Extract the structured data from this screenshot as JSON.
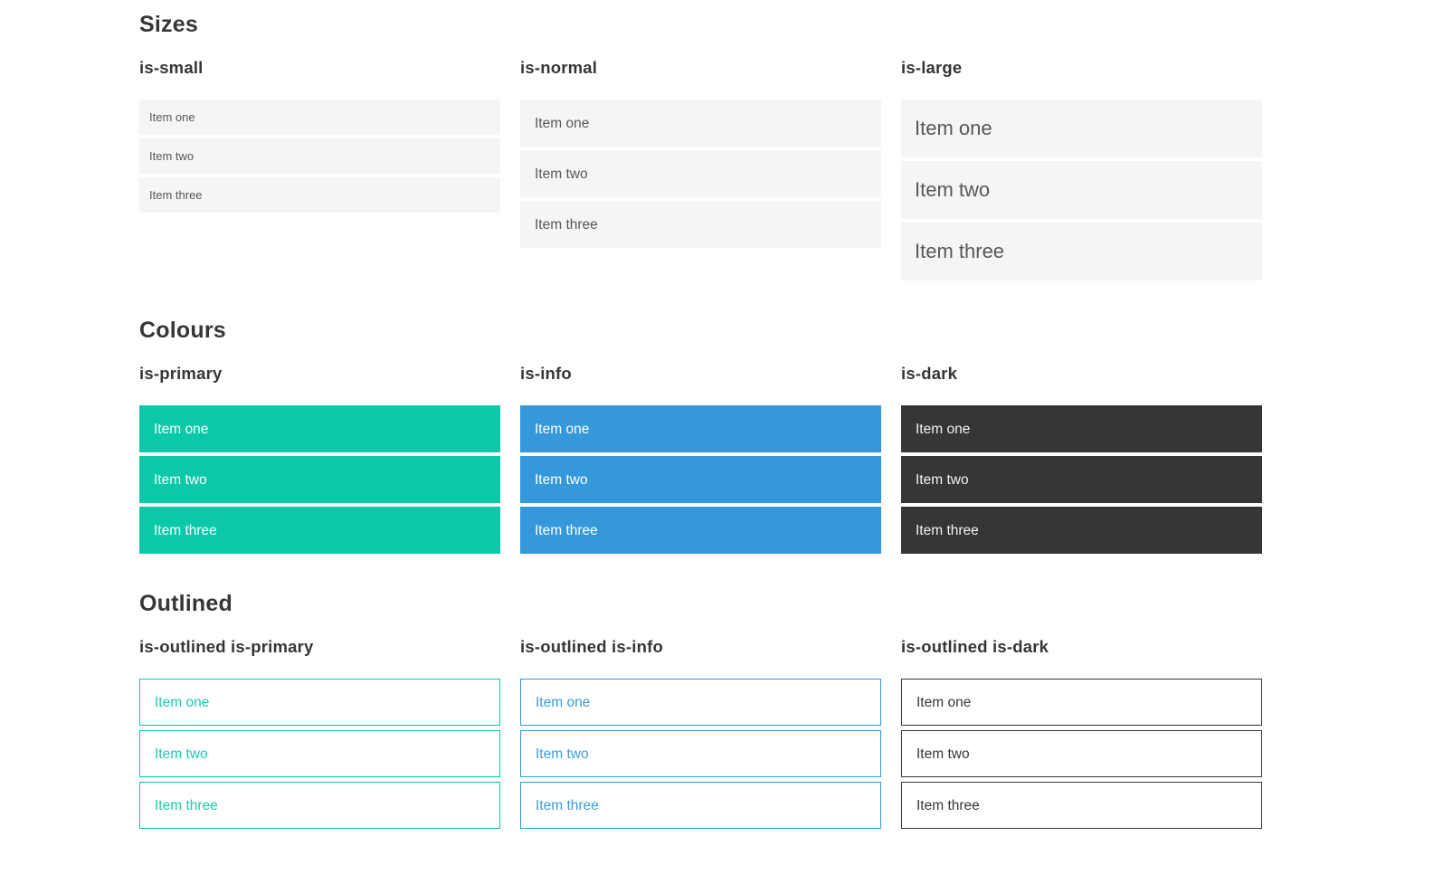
{
  "colors": {
    "primary": "#0bc8a9",
    "info": "#3498db",
    "dark": "#363636",
    "light_item_background": "#f5f5f5",
    "heading_text": "#363636",
    "item_text": "#55585b",
    "colored_item_text": "#ffffff"
  },
  "sections": [
    {
      "title": "Sizes",
      "groups": [
        {
          "label": "is-small",
          "items": [
            "Item one",
            "Item two",
            "Item three"
          ]
        },
        {
          "label": "is-normal",
          "items": [
            "Item one",
            "Item two",
            "Item three"
          ]
        },
        {
          "label": "is-large",
          "items": [
            "Item one",
            "Item two",
            "Item three"
          ]
        }
      ]
    },
    {
      "title": "Colours",
      "groups": [
        {
          "label": "is-primary",
          "items": [
            "Item one",
            "Item two",
            "Item three"
          ]
        },
        {
          "label": "is-info",
          "items": [
            "Item one",
            "Item two",
            "Item three"
          ]
        },
        {
          "label": "is-dark",
          "items": [
            "Item one",
            "Item two",
            "Item three"
          ]
        }
      ]
    },
    {
      "title": "Outlined",
      "groups": [
        {
          "label": "is-outlined is-primary",
          "items": [
            "Item one",
            "Item two",
            "Item three"
          ]
        },
        {
          "label": "is-outlined is-info",
          "items": [
            "Item one",
            "Item two",
            "Item three"
          ]
        },
        {
          "label": "is-outlined is-dark",
          "items": [
            "Item one",
            "Item two",
            "Item three"
          ]
        }
      ]
    }
  ]
}
